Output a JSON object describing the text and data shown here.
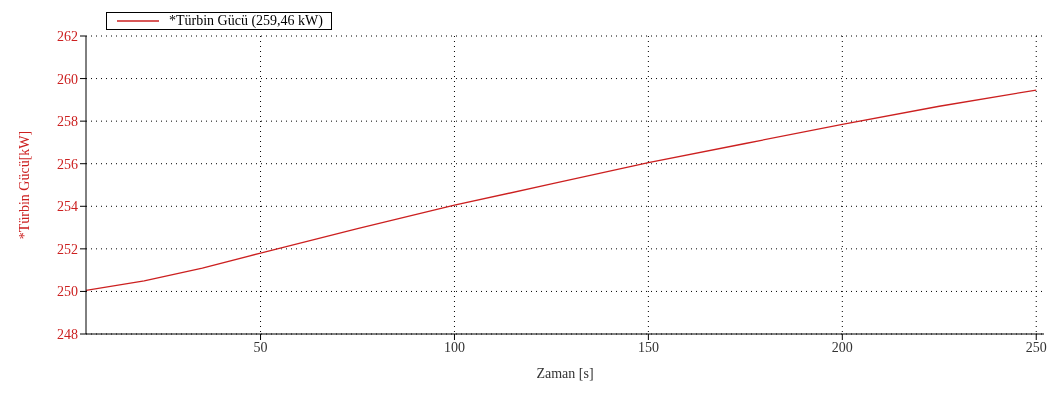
{
  "chart_data": {
    "type": "line",
    "xlabel": "Zaman [s]",
    "ylabel": "*Türbin Gücü[kW]",
    "x": [
      5,
      20,
      35,
      50,
      75,
      100,
      125,
      150,
      175,
      200,
      225,
      250
    ],
    "series": [
      {
        "name": "*Türbin Gücü (259,46 kW)",
        "color": "#cc2020",
        "values": [
          250.05,
          250.5,
          251.1,
          251.8,
          252.95,
          254.05,
          255.05,
          256.05,
          256.95,
          257.85,
          258.7,
          259.46
        ]
      }
    ],
    "xlim": [
      5,
      252
    ],
    "xticks": [
      50,
      100,
      150,
      200,
      250
    ],
    "ylim": [
      248,
      262
    ],
    "yticks": [
      248,
      250,
      252,
      254,
      256,
      258,
      260,
      262
    ],
    "grid": true,
    "legend": "top left",
    "marker": "none",
    "line_style": "solid"
  }
}
